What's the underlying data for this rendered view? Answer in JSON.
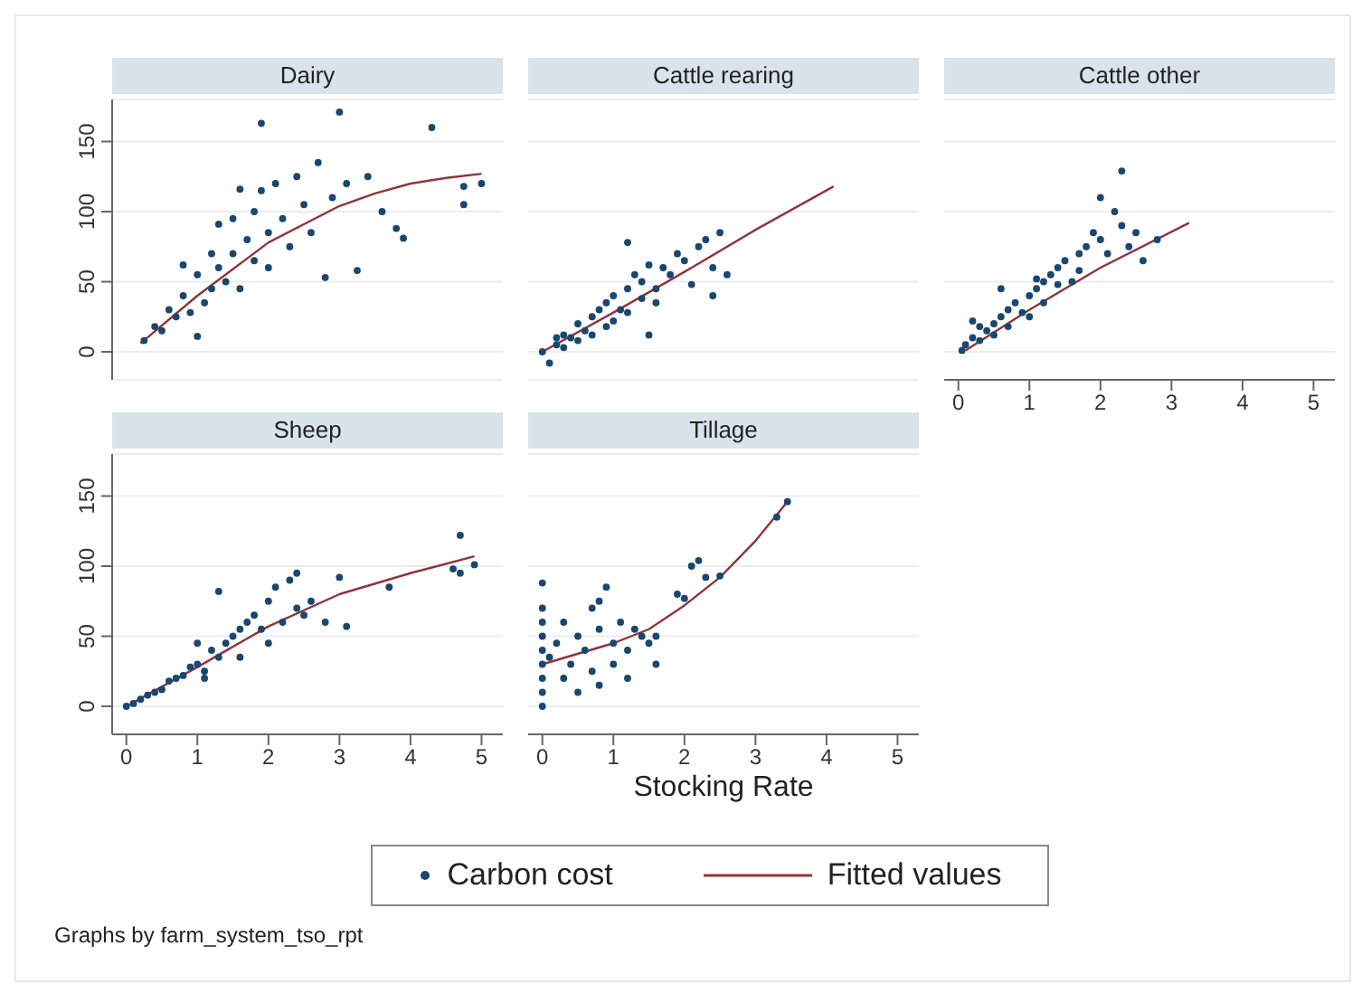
{
  "chart_data": [
    {
      "type": "scatter",
      "title": "Dairy",
      "xlim": [
        -0.2,
        5.3
      ],
      "xticks": [
        0,
        1,
        2,
        3,
        4,
        5
      ],
      "ylim": [
        -20,
        180
      ],
      "yticks": [
        0,
        50,
        100,
        150
      ],
      "grid": "y",
      "tick_labels": "y",
      "legend": "bottom",
      "series": [
        {
          "name": "Carbon cost",
          "marker": "circle",
          "color": "#1a476f",
          "x": [
            0.25,
            0.4,
            0.5,
            0.6,
            0.7,
            0.8,
            0.8,
            0.9,
            1.0,
            1.0,
            1.1,
            1.2,
            1.2,
            1.3,
            1.3,
            1.4,
            1.5,
            1.5,
            1.6,
            1.6,
            1.7,
            1.8,
            1.8,
            1.9,
            1.9,
            2.0,
            2.0,
            2.1,
            2.2,
            2.3,
            2.4,
            2.5,
            2.6,
            2.7,
            2.8,
            2.9,
            3.0,
            3.1,
            3.25,
            3.4,
            3.6,
            3.8,
            3.9,
            4.3,
            4.75,
            4.75,
            5.0
          ],
          "values": [
            8,
            18,
            15,
            30,
            25,
            62,
            40,
            28,
            55,
            11,
            35,
            70,
            45,
            91,
            60,
            50,
            95,
            70,
            116,
            45,
            80,
            100,
            65,
            163,
            115,
            85,
            60,
            120,
            95,
            75,
            125,
            105,
            85,
            135,
            53,
            110,
            171,
            120,
            58,
            125,
            100,
            88,
            81,
            160,
            118,
            105,
            120
          ]
        },
        {
          "name": "Fitted values",
          "type": "line",
          "color": "#90353b",
          "x": [
            0.2,
            1,
            2,
            3,
            3.5,
            4,
            4.5,
            5
          ],
          "values": [
            6,
            40,
            78,
            104,
            113,
            120,
            124,
            127
          ]
        }
      ]
    },
    {
      "type": "scatter",
      "title": "Cattle rearing",
      "xlim": [
        -0.2,
        5.3
      ],
      "xticks": [
        0,
        1,
        2,
        3,
        4,
        5
      ],
      "ylim": [
        -20,
        180
      ],
      "yticks": [
        0,
        50,
        100,
        150
      ],
      "grid": "y",
      "tick_labels": false,
      "series": [
        {
          "marker": "circle",
          "color": "#1a476f",
          "x": [
            0,
            0.1,
            0.2,
            0.3,
            0.3,
            0.4,
            0.5,
            0.5,
            0.6,
            0.7,
            0.7,
            0.8,
            0.9,
            0.9,
            1.0,
            1.0,
            1.1,
            1.2,
            1.2,
            1.3,
            1.4,
            1.4,
            1.5,
            1.6,
            1.6,
            1.7,
            1.8,
            1.9,
            2.0,
            2.1,
            2.2,
            2.3,
            2.4,
            2.5,
            2.6,
            0.2,
            1.5,
            2.4,
            1.2
          ],
          "values": [
            0,
            -8,
            5,
            3,
            12,
            10,
            20,
            8,
            15,
            25,
            12,
            30,
            35,
            18,
            40,
            22,
            30,
            45,
            28,
            55,
            38,
            50,
            62,
            45,
            35,
            60,
            55,
            70,
            65,
            48,
            75,
            80,
            60,
            85,
            55,
            10,
            12,
            40,
            78
          ]
        },
        {
          "type": "line",
          "color": "#90353b",
          "x": [
            0,
            1,
            2,
            3,
            4.1
          ],
          "values": [
            0,
            28,
            57,
            87,
            118
          ]
        }
      ]
    },
    {
      "type": "scatter",
      "title": "Cattle other",
      "xlim": [
        -0.2,
        5.3
      ],
      "xticks": [
        0,
        1,
        2,
        3,
        4,
        5
      ],
      "ylim": [
        -20,
        180
      ],
      "yticks": [
        0,
        50,
        100,
        150
      ],
      "grid": "y",
      "tick_labels": "x",
      "series": [
        {
          "marker": "circle",
          "color": "#1a476f",
          "x": [
            0.05,
            0.1,
            0.2,
            0.3,
            0.3,
            0.4,
            0.5,
            0.5,
            0.6,
            0.7,
            0.7,
            0.8,
            0.9,
            1.0,
            1.0,
            1.1,
            1.2,
            1.2,
            1.3,
            1.4,
            1.4,
            1.5,
            1.6,
            1.7,
            1.7,
            1.8,
            1.9,
            2.0,
            2.1,
            2.2,
            2.3,
            2.3,
            2.4,
            2.5,
            2.6,
            2.8,
            0.2,
            0.6,
            1.1,
            2.0
          ],
          "values": [
            1,
            5,
            10,
            8,
            18,
            15,
            20,
            12,
            25,
            30,
            18,
            35,
            28,
            40,
            25,
            45,
            50,
            35,
            55,
            48,
            60,
            65,
            50,
            70,
            58,
            75,
            85,
            80,
            70,
            100,
            129,
            90,
            75,
            85,
            65,
            80,
            22,
            45,
            52,
            110
          ]
        },
        {
          "type": "line",
          "color": "#90353b",
          "x": [
            0.1,
            1,
            2,
            3.25
          ],
          "values": [
            1,
            30,
            60,
            92
          ]
        }
      ]
    },
    {
      "type": "scatter",
      "title": "Sheep",
      "xlim": [
        -0.2,
        5.3
      ],
      "xticks": [
        0,
        1,
        2,
        3,
        4,
        5
      ],
      "ylim": [
        -20,
        180
      ],
      "yticks": [
        0,
        50,
        100,
        150
      ],
      "grid": "y",
      "annotations": [
        "Graphs by farm_system_tso_rpt"
      ],
      "series": [
        {
          "marker": "circle",
          "color": "#1a476f",
          "x": [
            0,
            0.1,
            0.2,
            0.3,
            0.4,
            0.5,
            0.6,
            0.7,
            0.8,
            0.9,
            1.0,
            1.0,
            1.1,
            1.2,
            1.3,
            1.3,
            1.4,
            1.5,
            1.6,
            1.6,
            1.7,
            1.8,
            1.9,
            2.0,
            2.0,
            2.1,
            2.2,
            2.3,
            2.4,
            2.5,
            2.6,
            2.8,
            3.0,
            3.1,
            3.7,
            4.6,
            4.7,
            4.7,
            4.9,
            1.1,
            2.4
          ],
          "values": [
            0,
            2,
            5,
            8,
            10,
            12,
            18,
            20,
            22,
            28,
            30,
            45,
            25,
            40,
            35,
            82,
            45,
            50,
            55,
            35,
            60,
            65,
            55,
            75,
            45,
            85,
            60,
            90,
            70,
            65,
            75,
            60,
            92,
            57,
            85,
            98,
            122,
            95,
            101,
            20,
            95
          ]
        },
        {
          "type": "line",
          "color": "#90353b",
          "x": [
            0,
            1,
            2,
            3,
            4,
            4.9
          ],
          "values": [
            0,
            28,
            57,
            80,
            95,
            107
          ]
        }
      ]
    },
    {
      "type": "scatter",
      "title": "Tillage",
      "xlabel": "Stocking Rate",
      "xlim": [
        -0.2,
        5.3
      ],
      "xticks": [
        0,
        1,
        2,
        3,
        4,
        5
      ],
      "ylim": [
        -20,
        180
      ],
      "yticks": [
        0,
        50,
        100,
        150
      ],
      "grid": "y",
      "tick_labels": "x",
      "series": [
        {
          "marker": "circle",
          "color": "#1a476f",
          "x": [
            0,
            0,
            0,
            0,
            0,
            0,
            0,
            0,
            0,
            0.1,
            0.2,
            0.3,
            0.3,
            0.4,
            0.5,
            0.5,
            0.6,
            0.7,
            0.7,
            0.8,
            0.8,
            0.9,
            1.0,
            1.0,
            1.1,
            1.2,
            1.2,
            1.3,
            1.4,
            1.5,
            1.6,
            1.6,
            0.8,
            1.9,
            2.0,
            2.1,
            2.2,
            2.3,
            2.5,
            3.3,
            3.45
          ],
          "values": [
            0,
            10,
            20,
            30,
            40,
            50,
            60,
            70,
            88,
            35,
            45,
            20,
            60,
            30,
            50,
            10,
            40,
            70,
            25,
            55,
            15,
            85,
            45,
            30,
            60,
            40,
            20,
            55,
            50,
            45,
            30,
            50,
            75,
            80,
            77,
            100,
            104,
            92,
            93,
            135,
            146
          ]
        },
        {
          "type": "line",
          "color": "#90353b",
          "x": [
            0,
            1,
            1.5,
            2,
            2.5,
            3,
            3.45
          ],
          "values": [
            30,
            45,
            55,
            72,
            92,
            118,
            146
          ]
        }
      ]
    }
  ]
}
